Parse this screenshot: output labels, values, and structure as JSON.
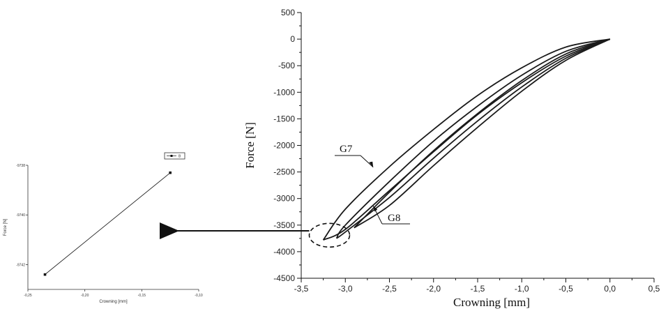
{
  "chart_data": [
    {
      "type": "line",
      "xlabel": "Crowning [mm]",
      "ylabel": "Force [N]",
      "xlim": [
        -3.5,
        0.5
      ],
      "ylim": [
        -4500,
        500
      ],
      "x_ticks": [
        -3.5,
        -3.0,
        -2.5,
        -2.0,
        -1.5,
        -1.0,
        -0.5,
        0.0,
        0.5
      ],
      "x_tick_labels": [
        "-3,5",
        "-3,0",
        "-2,5",
        "-2,0",
        "-1,5",
        "-1,0",
        "-0,5",
        "0,0",
        "0,5"
      ],
      "y_ticks": [
        500,
        0,
        -500,
        -1000,
        -1500,
        -2000,
        -2500,
        -3000,
        -3500,
        -4000,
        -4500
      ],
      "y_tick_labels": [
        "500",
        "0",
        "-500",
        "-1000",
        "-1500",
        "-2000",
        "-2500",
        "-3000",
        "-3500",
        "-4000",
        "-4500"
      ],
      "series": [
        {
          "x": [
            0.0,
            -0.5,
            -1.0,
            -1.5,
            -2.0,
            -2.5,
            -3.0,
            -3.25
          ],
          "y": [
            0,
            -150,
            -540,
            -1060,
            -1700,
            -2400,
            -3200,
            -3780
          ]
        },
        {
          "x": [
            0.0,
            -0.5,
            -1.0,
            -1.5,
            -2.0,
            -2.5,
            -3.0,
            -3.25
          ],
          "y": [
            0,
            -320,
            -820,
            -1420,
            -2120,
            -2850,
            -3580,
            -3780
          ]
        },
        {
          "x": [
            0.0,
            -0.5,
            -1.0,
            -1.5,
            -2.0,
            -2.5,
            -3.0,
            -3.1
          ],
          "y": [
            0,
            -230,
            -680,
            -1260,
            -1920,
            -2680,
            -3500,
            -3750
          ]
        },
        {
          "x": [
            0.0,
            -0.5,
            -1.0,
            -1.5,
            -2.0,
            -2.5,
            -3.0,
            -3.1
          ],
          "y": [
            0,
            -360,
            -900,
            -1540,
            -2240,
            -2980,
            -3630,
            -3750
          ]
        },
        {
          "x": [
            0.0,
            -0.5,
            -1.0,
            -1.5,
            -2.0,
            -2.5,
            -2.9
          ],
          "y": [
            0,
            -280,
            -780,
            -1400,
            -2100,
            -2880,
            -3550
          ]
        },
        {
          "x": [
            0.0,
            -0.5,
            -1.0,
            -1.5,
            -2.0,
            -2.5,
            -2.9
          ],
          "y": [
            0,
            -400,
            -980,
            -1660,
            -2380,
            -3130,
            -3550
          ]
        }
      ],
      "annotations": [
        {
          "text": "G7",
          "x": -2.7,
          "y": -2450
        },
        {
          "text": "G8",
          "x": -2.7,
          "y": -3100
        }
      ]
    },
    {
      "type": "line",
      "xlabel": "Crowning [mm]",
      "ylabel": "Force [N]",
      "xlim": [
        -0.25,
        -0.1
      ],
      "ylim": [
        -9743,
        -9738
      ],
      "x_ticks": [
        -0.25,
        -0.2,
        -0.15,
        -0.1
      ],
      "x_tick_labels": [
        "-0,25",
        "-0,20",
        "-0,15",
        "-0,10"
      ],
      "y_ticks": [
        -9738,
        -9740,
        -9742
      ],
      "y_tick_labels": [
        "-9738",
        "-9740",
        "-9742"
      ],
      "legend": {
        "label": "B",
        "position": "top-right"
      },
      "series": [
        {
          "name": "B",
          "x": [
            -0.235,
            -0.125
          ],
          "y": [
            -9742.4,
            -9738.3
          ]
        }
      ]
    }
  ]
}
